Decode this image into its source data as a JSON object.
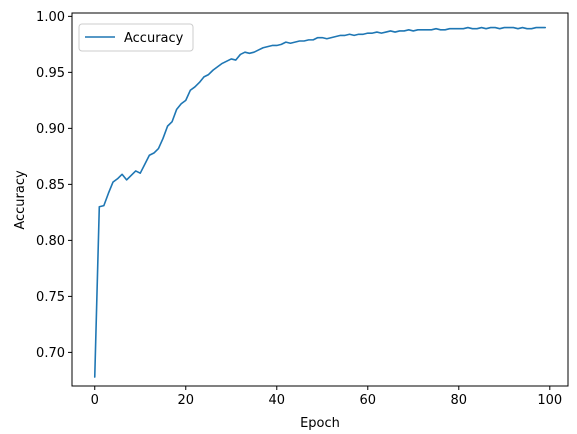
{
  "chart_data": {
    "type": "line",
    "title": "",
    "xlabel": "Epoch",
    "ylabel": "Accuracy",
    "xlim": [
      -5,
      104
    ],
    "ylim": [
      0.67,
      1.003
    ],
    "x_ticks": [
      0,
      20,
      40,
      60,
      80,
      100
    ],
    "y_ticks": [
      0.7,
      0.75,
      0.8,
      0.85,
      0.9,
      0.95,
      1.0
    ],
    "x_tick_labels": [
      "0",
      "20",
      "40",
      "60",
      "80",
      "100"
    ],
    "y_tick_labels": [
      "0.70",
      "0.75",
      "0.80",
      "0.85",
      "0.90",
      "0.95",
      "1.00"
    ],
    "grid": false,
    "legend_position": "top-left",
    "series": [
      {
        "name": "Accuracy",
        "color": "#1f77b4",
        "x": [
          0,
          1,
          2,
          3,
          4,
          5,
          6,
          7,
          8,
          9,
          10,
          11,
          12,
          13,
          14,
          15,
          16,
          17,
          18,
          19,
          20,
          21,
          22,
          23,
          24,
          25,
          26,
          27,
          28,
          29,
          30,
          31,
          32,
          33,
          34,
          35,
          36,
          37,
          38,
          39,
          40,
          41,
          42,
          43,
          44,
          45,
          46,
          47,
          48,
          49,
          50,
          51,
          52,
          53,
          54,
          55,
          56,
          57,
          58,
          59,
          60,
          61,
          62,
          63,
          64,
          65,
          66,
          67,
          68,
          69,
          70,
          71,
          72,
          73,
          74,
          75,
          76,
          77,
          78,
          79,
          80,
          81,
          82,
          83,
          84,
          85,
          86,
          87,
          88,
          89,
          90,
          91,
          92,
          93,
          94,
          95,
          96,
          97,
          98,
          99
        ],
        "y": [
          0.678,
          0.83,
          0.831,
          0.842,
          0.852,
          0.855,
          0.859,
          0.854,
          0.858,
          0.862,
          0.86,
          0.868,
          0.876,
          0.878,
          0.882,
          0.891,
          0.902,
          0.906,
          0.917,
          0.922,
          0.925,
          0.934,
          0.937,
          0.941,
          0.946,
          0.948,
          0.952,
          0.955,
          0.958,
          0.96,
          0.962,
          0.961,
          0.966,
          0.968,
          0.967,
          0.968,
          0.97,
          0.972,
          0.973,
          0.974,
          0.974,
          0.975,
          0.977,
          0.976,
          0.977,
          0.978,
          0.978,
          0.979,
          0.979,
          0.981,
          0.981,
          0.98,
          0.981,
          0.982,
          0.983,
          0.983,
          0.984,
          0.983,
          0.984,
          0.984,
          0.985,
          0.985,
          0.986,
          0.985,
          0.986,
          0.987,
          0.986,
          0.987,
          0.987,
          0.988,
          0.987,
          0.988,
          0.988,
          0.988,
          0.988,
          0.989,
          0.988,
          0.988,
          0.989,
          0.989,
          0.989,
          0.989,
          0.99,
          0.989,
          0.989,
          0.99,
          0.989,
          0.99,
          0.99,
          0.989,
          0.99,
          0.99,
          0.99,
          0.989,
          0.99,
          0.989,
          0.989,
          0.99,
          0.99,
          0.99
        ]
      }
    ]
  }
}
